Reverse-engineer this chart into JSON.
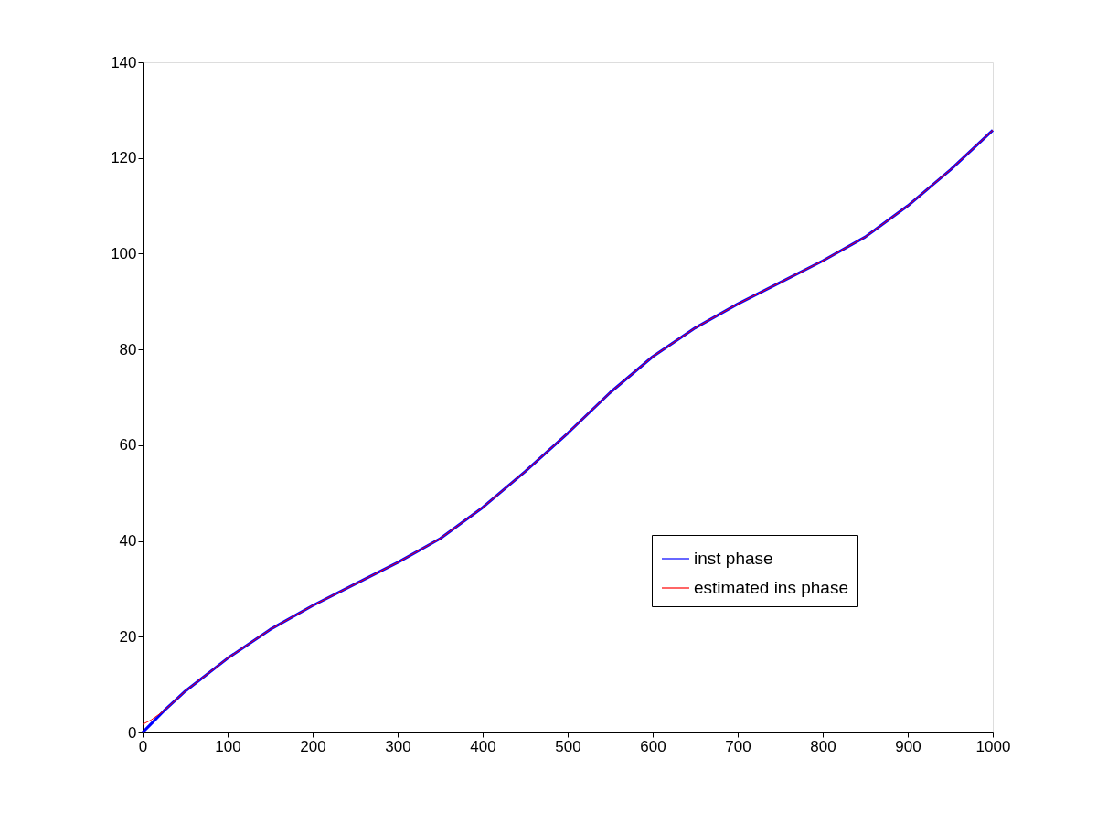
{
  "chart_data": {
    "type": "line",
    "xlim": [
      0,
      1000
    ],
    "xticks": [
      0,
      100,
      200,
      300,
      400,
      500,
      600,
      700,
      800,
      900,
      1000
    ],
    "ylim": [
      0,
      140
    ],
    "yticks": [
      0,
      20,
      40,
      60,
      80,
      100,
      120,
      140
    ],
    "grid": false,
    "legend": "bottom right",
    "line_style": "solid",
    "marker": "none",
    "series": [
      {
        "name": "inst phase",
        "color": "#0000ff",
        "x": [
          0,
          10,
          25,
          50,
          100,
          150,
          200,
          250,
          300,
          350,
          400,
          450,
          500,
          550,
          600,
          650,
          700,
          750,
          800,
          850,
          900,
          950,
          1000
        ],
        "values": [
          0,
          1.8,
          4.5,
          8.6,
          15.5,
          21.5,
          26.5,
          31,
          35.5,
          40.5,
          47,
          54.5,
          62.5,
          71,
          78.5,
          84.5,
          89.5,
          94,
          98.5,
          103.5,
          110,
          117.5,
          125.8
        ]
      },
      {
        "name": "estimated ins phase",
        "color": "#ff0000",
        "x": [
          0,
          10,
          25,
          50,
          100,
          150,
          200,
          250,
          300,
          350,
          400,
          450,
          500,
          550,
          600,
          650,
          700,
          750,
          800,
          850,
          900,
          950,
          1000
        ],
        "values": [
          1.7,
          2.6,
          4.5,
          8.6,
          15.5,
          21.5,
          26.5,
          31,
          35.5,
          40.5,
          47,
          54.5,
          62.5,
          71,
          78.5,
          84.5,
          89.5,
          94,
          98.5,
          103.5,
          110,
          117.5,
          125.8
        ]
      }
    ]
  }
}
